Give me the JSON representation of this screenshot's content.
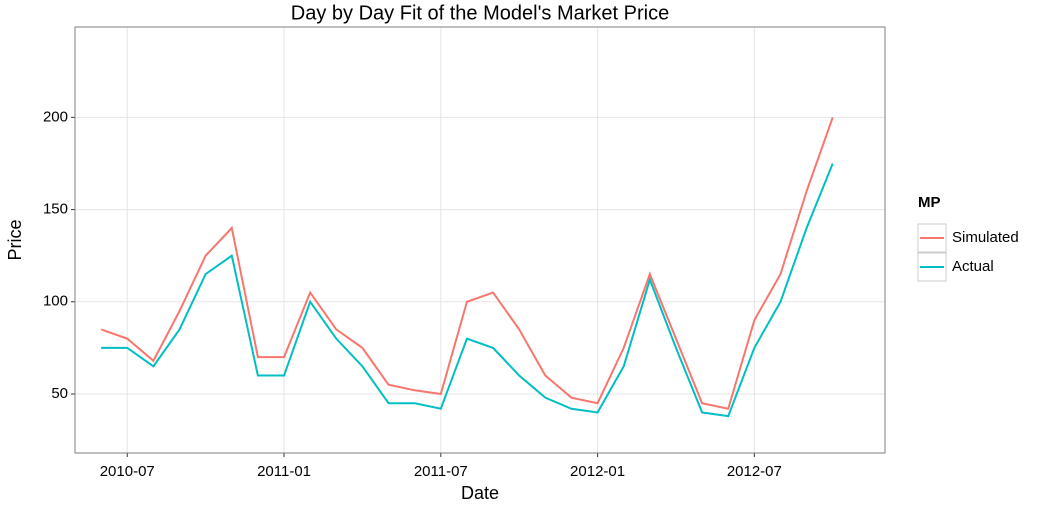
{
  "chart_data": {
    "type": "line",
    "title": "Day by Day Fit of the Model's Market Price",
    "xlabel": "Date",
    "ylabel": "Price",
    "legend_title": "MP",
    "legend": "right",
    "grid": true,
    "x": [
      "2010-06",
      "2010-07",
      "2010-08",
      "2010-09",
      "2010-10",
      "2010-11",
      "2010-12",
      "2011-01",
      "2011-02",
      "2011-03",
      "2011-04",
      "2011-05",
      "2011-06",
      "2011-07",
      "2011-08",
      "2011-09",
      "2011-10",
      "2011-11",
      "2011-12",
      "2012-01",
      "2012-02",
      "2012-03",
      "2012-04",
      "2012-05",
      "2012-06",
      "2012-07",
      "2012-08",
      "2012-09",
      "2012-10"
    ],
    "series": [
      {
        "name": "Simulated",
        "color": "#F8766D",
        "values": [
          85,
          80,
          68,
          95,
          125,
          140,
          70,
          70,
          105,
          85,
          75,
          55,
          52,
          50,
          100,
          105,
          85,
          60,
          48,
          45,
          75,
          115,
          80,
          45,
          42,
          90,
          115,
          160,
          200
        ]
      },
      {
        "name": "Actual",
        "color": "#00BFC4",
        "values": [
          75,
          75,
          65,
          85,
          115,
          125,
          60,
          60,
          100,
          80,
          65,
          45,
          45,
          42,
          80,
          75,
          60,
          48,
          42,
          40,
          65,
          112,
          75,
          40,
          38,
          75,
          100,
          140,
          175
        ]
      }
    ],
    "xlim": [
      "2010-05",
      "2012-12"
    ],
    "xticks": [
      "2010-07",
      "2011-01",
      "2011-07",
      "2012-01",
      "2012-07"
    ],
    "ylim": [
      18,
      249
    ],
    "yticks": [
      50,
      100,
      150,
      200
    ]
  }
}
